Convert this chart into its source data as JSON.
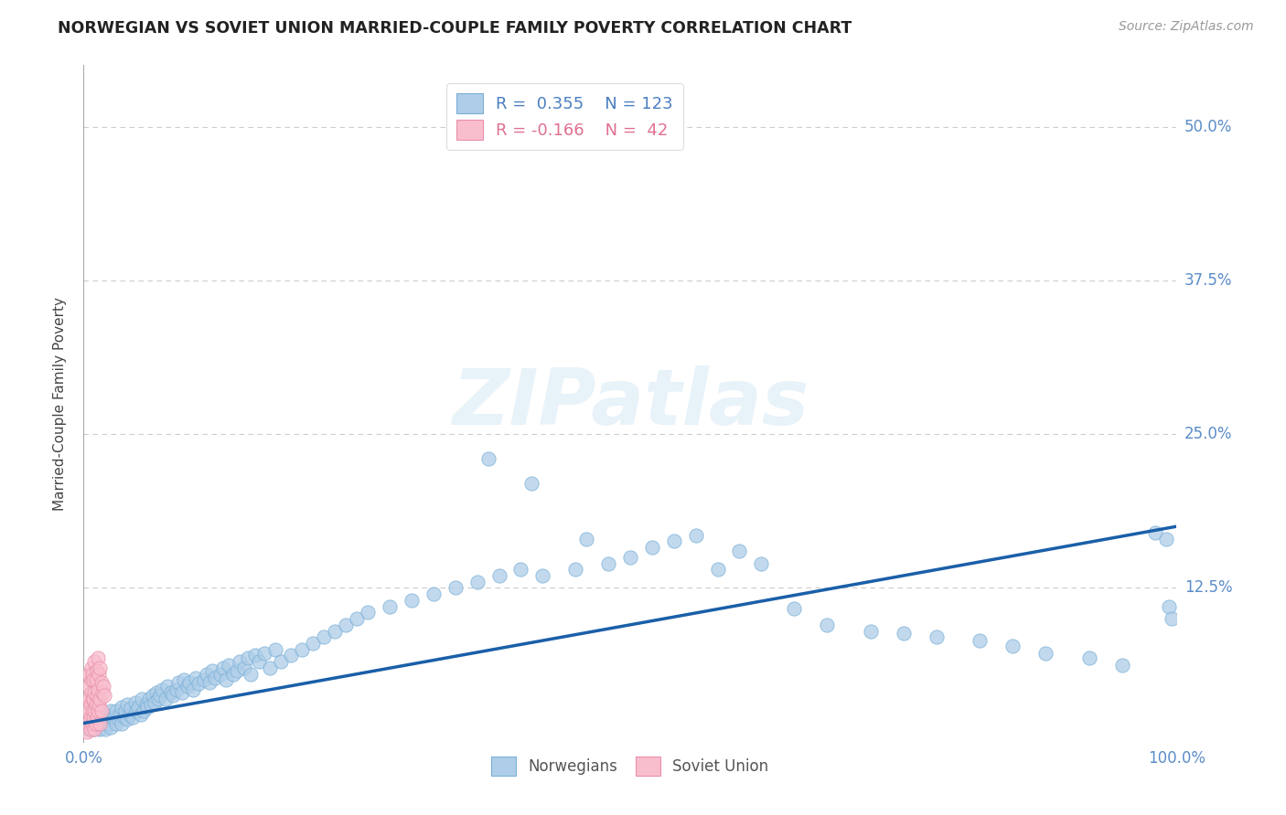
{
  "title": "NORWEGIAN VS SOVIET UNION MARRIED-COUPLE FAMILY POVERTY CORRELATION CHART",
  "source": "Source: ZipAtlas.com",
  "ylabel": "Married-Couple Family Poverty",
  "background_color": "#ffffff",
  "watermark_text": "ZIPatlas",
  "norwegian_color": "#aecde8",
  "norwegian_edge": "#7ab0d8",
  "soviet_color": "#f9bece",
  "soviet_edge": "#e890aa",
  "trend_color": "#1a5fa8",
  "trend_lw": 2.5,
  "grid_color": "#cccccc",
  "ytick_color": "#5b8dc8",
  "xtick_color": "#5b8dc8",
  "scatter_size": 120,
  "scatter_lw": 0.7,
  "scatter_alpha": 0.75,
  "norwegian_x": [
    0.005,
    0.008,
    0.01,
    0.01,
    0.012,
    0.013,
    0.015,
    0.015,
    0.016,
    0.018,
    0.02,
    0.02,
    0.022,
    0.023,
    0.025,
    0.025,
    0.027,
    0.028,
    0.03,
    0.03,
    0.032,
    0.033,
    0.035,
    0.035,
    0.037,
    0.038,
    0.04,
    0.04,
    0.042,
    0.043,
    0.045,
    0.047,
    0.048,
    0.05,
    0.052,
    0.053,
    0.055,
    0.057,
    0.058,
    0.06,
    0.062,
    0.063,
    0.065,
    0.067,
    0.068,
    0.07,
    0.072,
    0.075,
    0.077,
    0.08,
    0.082,
    0.085,
    0.087,
    0.09,
    0.092,
    0.095,
    0.097,
    0.1,
    0.103,
    0.105,
    0.11,
    0.113,
    0.115,
    0.118,
    0.12,
    0.125,
    0.128,
    0.13,
    0.133,
    0.137,
    0.14,
    0.143,
    0.147,
    0.15,
    0.153,
    0.157,
    0.16,
    0.165,
    0.17,
    0.175,
    0.18,
    0.19,
    0.2,
    0.21,
    0.22,
    0.23,
    0.24,
    0.25,
    0.26,
    0.28,
    0.3,
    0.32,
    0.34,
    0.36,
    0.38,
    0.4,
    0.42,
    0.45,
    0.48,
    0.5,
    0.52,
    0.54,
    0.56,
    0.58,
    0.6,
    0.62,
    0.65,
    0.68,
    0.72,
    0.75,
    0.78,
    0.82,
    0.85,
    0.88,
    0.92,
    0.95,
    0.98,
    0.99,
    0.993,
    0.995,
    0.37,
    0.41,
    0.46
  ],
  "norwegian_y": [
    0.01,
    0.015,
    0.01,
    0.02,
    0.015,
    0.018,
    0.01,
    0.02,
    0.015,
    0.018,
    0.01,
    0.022,
    0.015,
    0.02,
    0.012,
    0.025,
    0.018,
    0.02,
    0.015,
    0.025,
    0.018,
    0.022,
    0.015,
    0.028,
    0.02,
    0.025,
    0.018,
    0.03,
    0.022,
    0.027,
    0.02,
    0.032,
    0.025,
    0.028,
    0.022,
    0.035,
    0.025,
    0.03,
    0.028,
    0.035,
    0.03,
    0.038,
    0.032,
    0.04,
    0.035,
    0.038,
    0.042,
    0.035,
    0.045,
    0.04,
    0.038,
    0.042,
    0.048,
    0.04,
    0.05,
    0.045,
    0.048,
    0.042,
    0.052,
    0.047,
    0.05,
    0.055,
    0.048,
    0.058,
    0.052,
    0.055,
    0.06,
    0.05,
    0.062,
    0.055,
    0.058,
    0.065,
    0.06,
    0.068,
    0.055,
    0.07,
    0.065,
    0.072,
    0.06,
    0.075,
    0.065,
    0.07,
    0.075,
    0.08,
    0.085,
    0.09,
    0.095,
    0.1,
    0.105,
    0.11,
    0.115,
    0.12,
    0.125,
    0.13,
    0.135,
    0.14,
    0.135,
    0.14,
    0.145,
    0.15,
    0.158,
    0.163,
    0.168,
    0.14,
    0.155,
    0.145,
    0.108,
    0.095,
    0.09,
    0.088,
    0.085,
    0.082,
    0.078,
    0.072,
    0.068,
    0.062,
    0.17,
    0.165,
    0.11,
    0.1,
    0.23,
    0.21,
    0.165
  ],
  "soviet_x": [
    0.003,
    0.004,
    0.004,
    0.005,
    0.005,
    0.005,
    0.006,
    0.006,
    0.006,
    0.007,
    0.007,
    0.007,
    0.008,
    0.008,
    0.008,
    0.008,
    0.009,
    0.009,
    0.009,
    0.01,
    0.01,
    0.01,
    0.01,
    0.011,
    0.011,
    0.011,
    0.012,
    0.012,
    0.012,
    0.013,
    0.013,
    0.013,
    0.014,
    0.014,
    0.015,
    0.015,
    0.015,
    0.016,
    0.016,
    0.017,
    0.018,
    0.019
  ],
  "soviet_y": [
    0.008,
    0.015,
    0.025,
    0.035,
    0.045,
    0.055,
    0.01,
    0.02,
    0.03,
    0.04,
    0.05,
    0.06,
    0.015,
    0.025,
    0.035,
    0.055,
    0.02,
    0.035,
    0.05,
    0.01,
    0.025,
    0.04,
    0.065,
    0.015,
    0.03,
    0.05,
    0.02,
    0.038,
    0.058,
    0.025,
    0.042,
    0.068,
    0.03,
    0.055,
    0.015,
    0.035,
    0.06,
    0.025,
    0.048,
    0.04,
    0.045,
    0.038
  ],
  "trend_x": [
    0.0,
    1.0
  ],
  "trend_y": [
    0.015,
    0.175
  ],
  "xlim": [
    0.0,
    1.0
  ],
  "ylim": [
    0.0,
    0.55
  ],
  "ytick_vals": [
    0.0,
    0.125,
    0.25,
    0.375,
    0.5
  ],
  "ytick_labels": [
    "",
    "12.5%",
    "25.0%",
    "37.5%",
    "50.0%"
  ],
  "xtick_vals": [
    0.0,
    0.25,
    0.5,
    0.75,
    1.0
  ],
  "xtick_labels": [
    "0.0%",
    "",
    "",
    "",
    "100.0%"
  ]
}
